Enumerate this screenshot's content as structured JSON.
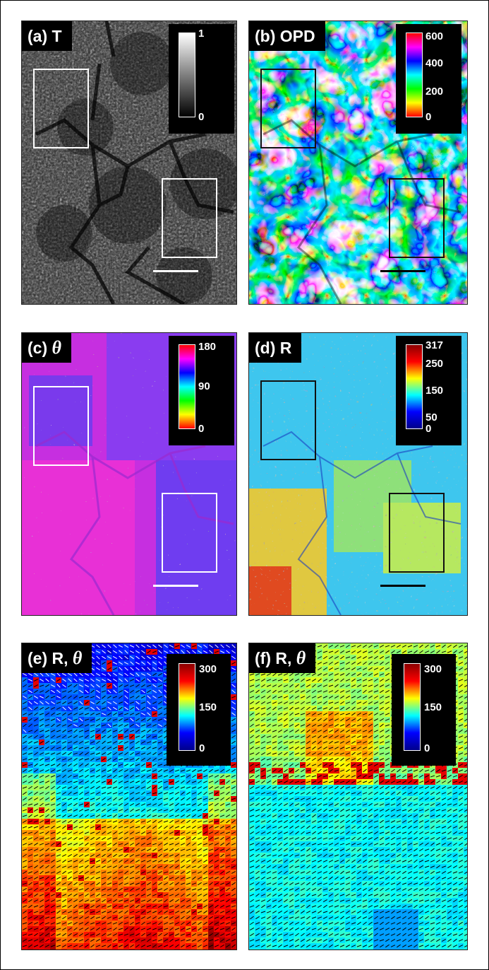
{
  "panels": {
    "a": {
      "label": "(a) T",
      "colormap": "gray",
      "ticks": [
        "1",
        "0"
      ],
      "roi_color": "#ffffff",
      "scalebar_color": "#ffffff"
    },
    "b": {
      "label": "(b) OPD",
      "colormap": "hsv",
      "ticks": [
        "600",
        "400",
        "200",
        "0"
      ],
      "roi_color": "#111111",
      "scalebar_color": "#000000"
    },
    "c": {
      "label_prefix": "(c)",
      "label_symbol": "θ",
      "colormap": "hsv",
      "ticks": [
        "180",
        "90",
        "0"
      ],
      "roi_color": "#ffffff",
      "scalebar_color": "#ffffff"
    },
    "d": {
      "label": "(d) R",
      "colormap": "jet",
      "ticks": [
        "317",
        "250",
        "150",
        "50",
        "0"
      ],
      "roi_color": "#111111",
      "scalebar_color": "#000000"
    },
    "e": {
      "label_prefix": "(e) R,",
      "label_symbol": "θ",
      "colormap": "jet",
      "ticks": [
        "300",
        "150",
        "0"
      ]
    },
    "f": {
      "label_prefix": "(f) R,",
      "label_symbol": "θ",
      "colormap": "jet",
      "ticks": [
        "300",
        "150",
        "0"
      ]
    }
  }
}
